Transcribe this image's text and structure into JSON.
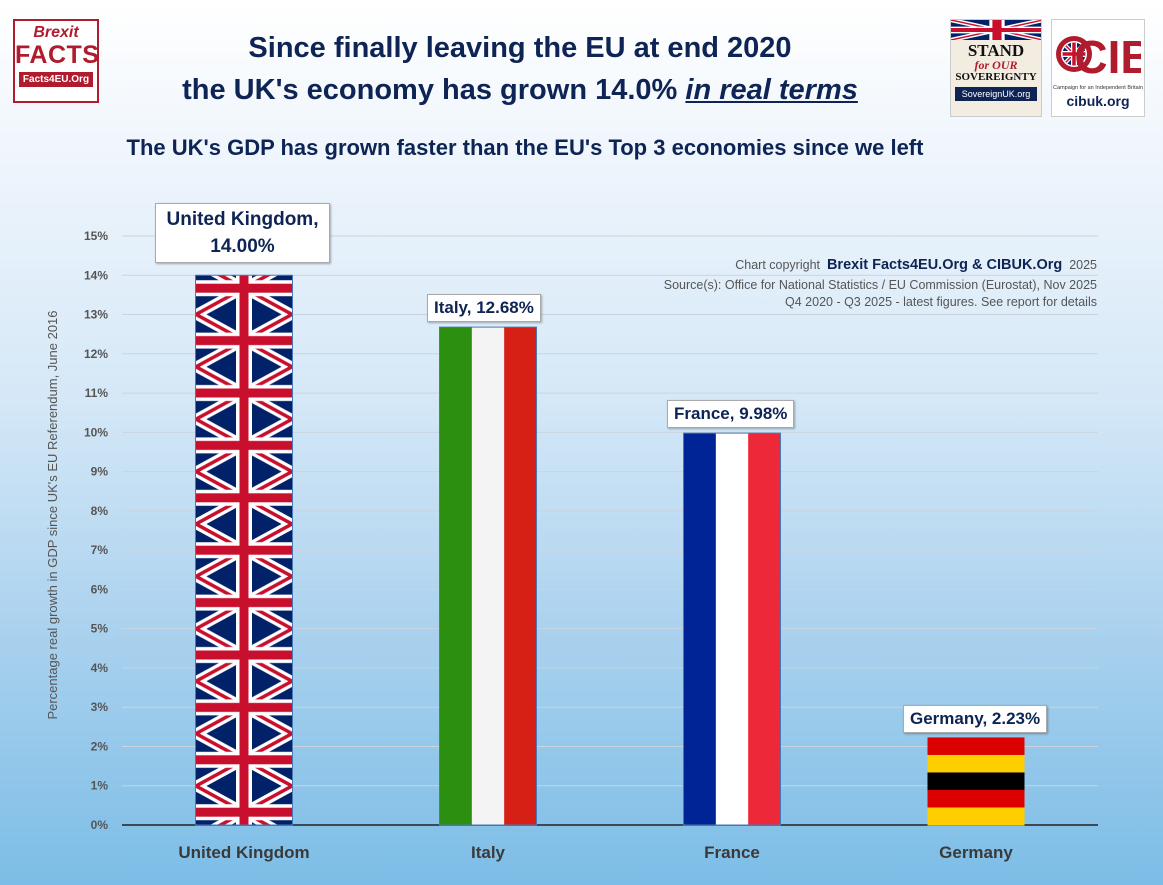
{
  "header": {
    "title_line1": "Since finally leaving the EU at end 2020",
    "title_line2_prefix": "the UK's economy has grown 14.0% ",
    "title_line2_emphasis": "in real terms",
    "subtitle": "The UK's GDP has grown faster than the EU's Top 3 economies since we left"
  },
  "logos": {
    "brexit_facts": {
      "line1": "Brexit",
      "line2": "FACTS",
      "line3": "Facts4EU.Org"
    },
    "sovereignty": {
      "line1": "STAND",
      "line2": "for OUR",
      "line3": "SOVEREIGNTY",
      "line4": "SovereignUK.org"
    },
    "cib": {
      "mark": "CIB",
      "tagline": "Campaign for an Independent Britain",
      "url": "cibuk.org"
    }
  },
  "credits": {
    "prefix": "Chart copyright",
    "owners": "Brexit Facts4EU.Org & CIBUK.Org",
    "year": "2025",
    "sources": "Source(s): Office for National Statistics  / EU Commission (Eurostat), Nov 2025",
    "period": "Q4 2020 - Q3 2025 - latest figures. See report for details"
  },
  "colors": {
    "navy": "#0e2454",
    "uk_blue": "#012169",
    "uk_red": "#c8102e",
    "it_green": "#2c8f10",
    "it_white": "#f4f4f4",
    "it_red": "#d62015",
    "fr_blue": "#002395",
    "fr_red": "#ed2939",
    "de_black": "#000000",
    "de_red": "#dd0000",
    "de_gold": "#ffce00"
  },
  "chart_data": {
    "type": "bar",
    "title": "The UK's GDP has grown faster than the EU's Top 3 economies since we left",
    "xlabel": "",
    "ylabel": "Percentage real growth in GDP since UK's EU Referendum, June 2016",
    "categories": [
      "United Kingdom",
      "Italy",
      "France",
      "Germany"
    ],
    "values": [
      14.0,
      12.68,
      9.98,
      2.23
    ],
    "data_labels": [
      "United Kingdom, 14.00%",
      "Italy, 12.68%",
      "France, 9.98%",
      "Germany, 2.23%"
    ],
    "ylim": [
      0,
      15
    ],
    "yticks": [
      "0%",
      "1%",
      "2%",
      "3%",
      "4%",
      "5%",
      "6%",
      "7%",
      "8%",
      "9%",
      "10%",
      "11%",
      "12%",
      "13%",
      "14%",
      "15%"
    ],
    "grid": true,
    "flags": [
      "uk",
      "italy",
      "france",
      "germany"
    ]
  }
}
